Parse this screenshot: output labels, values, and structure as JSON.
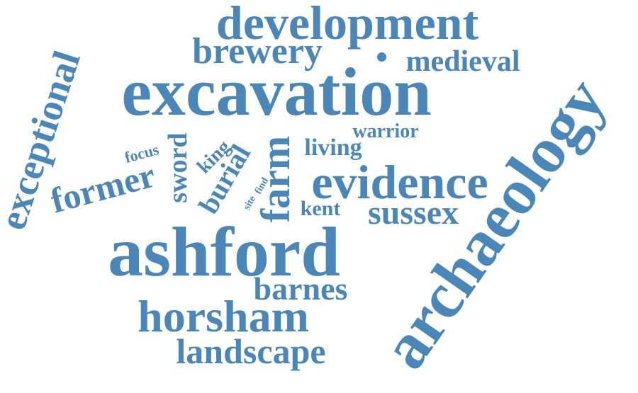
{
  "color": "#4a86b8",
  "words": {
    "development": "development",
    "brewery": "brewery",
    "medieval": "medieval",
    "excavation": "excavation",
    "exceptional": "exceptional",
    "warrior": "warrior",
    "living": "living",
    "focus": "focus",
    "king": "king",
    "sword": "sword",
    "burial": "burial",
    "farm": "farm",
    "evidence": "evidence",
    "former": "former",
    "site": "site",
    "find": "find",
    "kent": "kent",
    "sussex": "sussex",
    "archaeology": "archaeology",
    "ashford": "ashford",
    "barnes": "barnes",
    "horsham": "horsham",
    "landscape": "landscape"
  }
}
